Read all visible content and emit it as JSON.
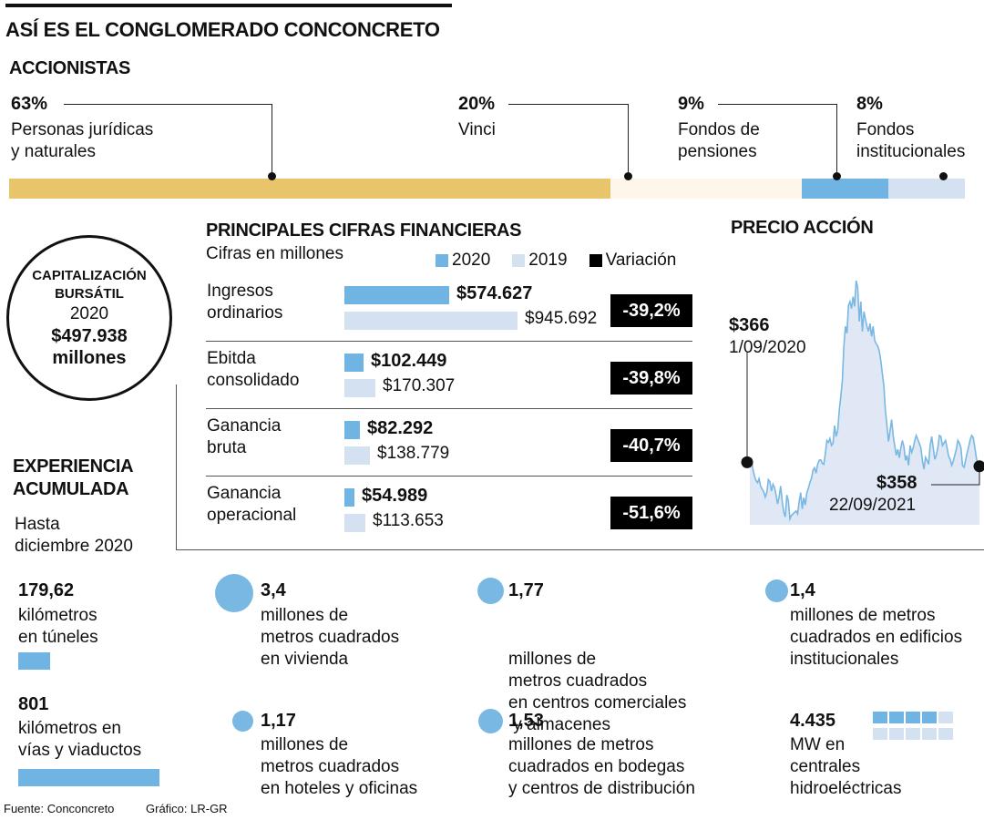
{
  "title": "ASÍ ES EL CONGLOMERADO CONCONCRETO",
  "accionistas": {
    "heading": "ACCIONISTAS",
    "items": [
      {
        "pct": "63%",
        "label_lines": [
          "Personas jurídicas",
          "y naturales"
        ],
        "share": 63,
        "color": "#e8c46a"
      },
      {
        "pct": "20%",
        "label_lines": [
          "Vinci"
        ],
        "share": 20,
        "color": "#fdf6e9"
      },
      {
        "pct": "9%",
        "label_lines": [
          "Fondos de",
          "pensiones"
        ],
        "share": 9,
        "color": "#6fb4e2"
      },
      {
        "pct": "8%",
        "label_lines": [
          "Fondos",
          "institucionales"
        ],
        "share": 8,
        "color": "#d3e1f1"
      }
    ]
  },
  "capitalizacion": {
    "lines": [
      "CAPITALIZACIÓN",
      "BURSÁTIL"
    ],
    "year": "2020",
    "value": "$497.938",
    "unit": "millones"
  },
  "cifras": {
    "heading": "PRINCIPALES CIFRAS FINANCIERAS",
    "subheading": "Cifras en millones",
    "legend": [
      {
        "label": "2020",
        "color": "#6fb4e2"
      },
      {
        "label": "2019",
        "color": "#d3e1f1"
      },
      {
        "label": "Variación",
        "color": "#000000"
      }
    ]
  },
  "experiencia": {
    "heading_lines": [
      "EXPERIENCIA",
      "ACUMULADA"
    ],
    "sub_lines": [
      "Hasta",
      "diciembre 2020"
    ],
    "items": [
      {
        "value": "179,62",
        "lines": [
          "kilómetros",
          "en túneles"
        ]
      },
      {
        "value": "801",
        "lines": [
          "kilómetros en",
          "vías y viaductos"
        ]
      },
      {
        "value": "3,4",
        "lines": [
          "millones de",
          "metros cuadrados",
          "en vivienda"
        ]
      },
      {
        "value": "1,77",
        "lines": [
          "millones de",
          "metros cuadrados",
          "en centros comerciales",
          " y almacenes"
        ]
      },
      {
        "value": "1,4",
        "lines": [
          "millones de metros",
          "cuadrados en edificios",
          "institucionales"
        ]
      },
      {
        "value": "1,17",
        "lines": [
          "millones de",
          "metros cuadrados",
          "en hoteles y oficinas"
        ]
      },
      {
        "value": "1,53",
        "lines": [
          "millones de metros",
          "cuadrados en bodegas",
          "y centros de distribución"
        ]
      },
      {
        "value": "4.435",
        "lines": [
          "MW en",
          "centrales",
          "hidroeléctricas"
        ],
        "squares_filled": 4,
        "squares_total": 10
      }
    ]
  },
  "precio": {
    "heading": "PRECIO ACCIÓN",
    "start": {
      "value": "$366",
      "date": "1/09/2020"
    },
    "end": {
      "value": "$358",
      "date": "22/09/2021"
    }
  },
  "footer": {
    "source": "Fuente: Conconcreto",
    "credit": "Gráfico: LR-GR"
  },
  "chart_data": [
    {
      "type": "bar",
      "categories": [
        "Ingresos ordinarios",
        "Ebitda consolidado",
        "Ganancia bruta",
        "Ganancia operacional"
      ],
      "category_lines": [
        [
          "Ingresos",
          "ordinarios"
        ],
        [
          "Ebitda",
          "consolidado"
        ],
        [
          "Ganancia",
          "bruta"
        ],
        [
          "Ganancia",
          "operacional"
        ]
      ],
      "series": [
        {
          "name": "2020",
          "values": [
            574627,
            102449,
            82292,
            54989
          ],
          "labels": [
            "$574.627",
            "$102.449",
            "$82.292",
            "$54.989"
          ],
          "color": "#6fb4e2"
        },
        {
          "name": "2019",
          "values": [
            945692,
            170307,
            138779,
            113653
          ],
          "labels": [
            "$945.692",
            "$170.307",
            "$138.779",
            "$113.653"
          ],
          "color": "#d3e1f1"
        }
      ],
      "variacion": [
        "-39,2%",
        "-39,8%",
        "-40,7%",
        "-51,6%"
      ]
    },
    {
      "type": "area",
      "x_start": "1/09/2020",
      "x_end": "22/09/2021",
      "y_start": 366,
      "y_end": 358,
      "ylim": [
        240,
        780
      ],
      "values": [
        366,
        372,
        352,
        338,
        329,
        325,
        333,
        318,
        312,
        307,
        296,
        305,
        331,
        327,
        308,
        322,
        315,
        300,
        282,
        296,
        318,
        288,
        266,
        256,
        300,
        288,
        252,
        259,
        262,
        265,
        268,
        262,
        286,
        305,
        272,
        295,
        280,
        305,
        314,
        326,
        334,
        350,
        355,
        344,
        362,
        370,
        371,
        364,
        362,
        384,
        410,
        406,
        414,
        400,
        404,
        440,
        418,
        430,
        470,
        498,
        530,
        600,
        640,
        626,
        682,
        690,
        676,
        700,
        680,
        732,
        718,
        650,
        690,
        630,
        670,
        655,
        640,
        630,
        646,
        620,
        640,
        612,
        605,
        600,
        590,
        570,
        545,
        520,
        470,
        440,
        408,
        430,
        452,
        420,
        400,
        380,
        392,
        375,
        395,
        410,
        398,
        370,
        380,
        360,
        400,
        386,
        395,
        410,
        420,
        412,
        404,
        395,
        370,
        352,
        376,
        370,
        362,
        400,
        418,
        395,
        372,
        380,
        395,
        420,
        418,
        400,
        405,
        410,
        395,
        378,
        372,
        360,
        368,
        380,
        392,
        410,
        405,
        395,
        360,
        356,
        370,
        385,
        398,
        412,
        420,
        416,
        396,
        375,
        362,
        358
      ],
      "color": "#79b8e3"
    }
  ]
}
